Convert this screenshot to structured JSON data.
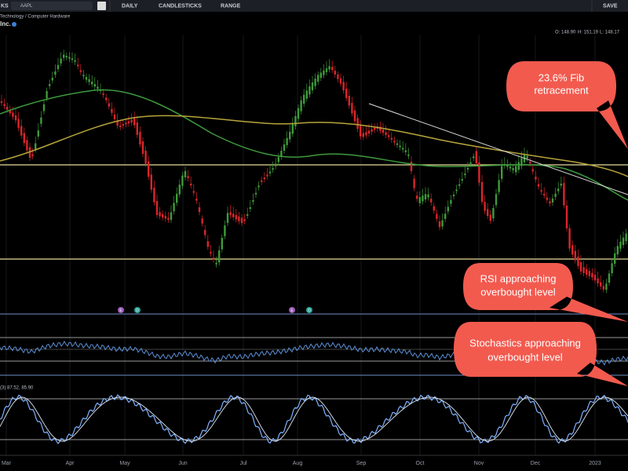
{
  "toolbar": {
    "tab": "KS",
    "search": "AAPL",
    "period": "DAILY",
    "style": "CANDLESTICKS",
    "range": "RANGE",
    "save": "SAVE"
  },
  "header": {
    "sector": "Technology / Computer Hardware",
    "name": "Inc.",
    "open": "O: 148.90",
    "high": "H: 151.19",
    "low": "L: 148.17"
  },
  "events": [
    "E",
    "D",
    "E",
    "D"
  ],
  "stoch_label": "(3) 87.52, 85.90",
  "months": [
    "Mar",
    "Apr",
    "May",
    "Jun",
    "Jul",
    "Aug",
    "Sep",
    "Oct",
    "Nov",
    "Dec",
    "2023"
  ],
  "annotations": {
    "fib": [
      "23.6% Fib",
      "retracement"
    ],
    "rsi": [
      "RSI approaching",
      "overbought level"
    ],
    "stoch": [
      "Stochastics approaching",
      "overbought level"
    ]
  }
}
